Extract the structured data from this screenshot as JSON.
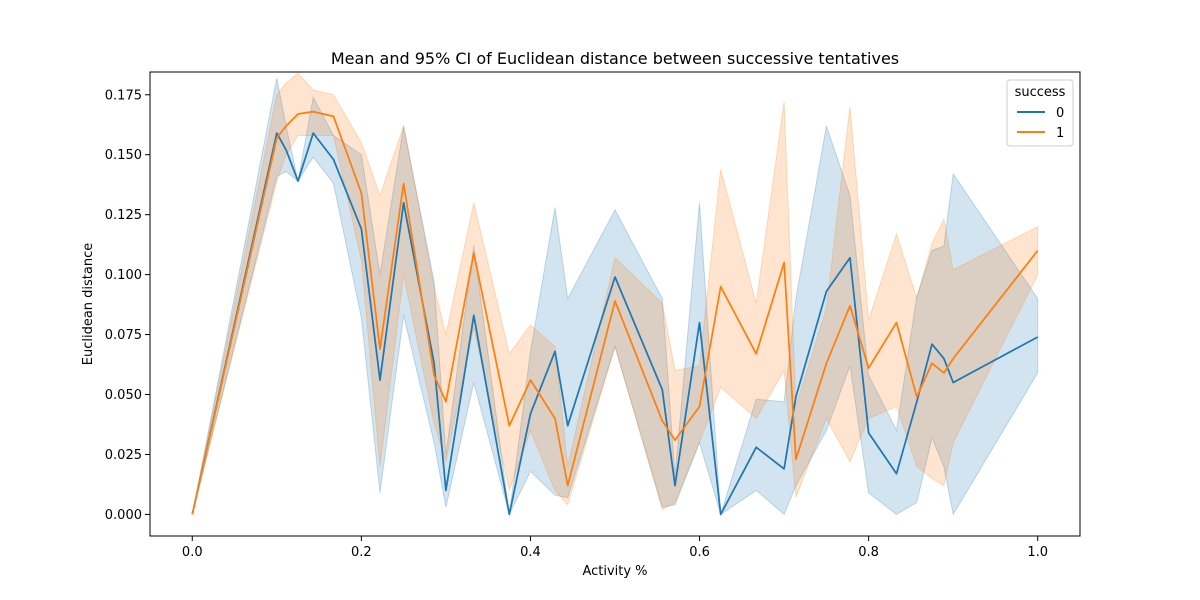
{
  "chart_data": {
    "type": "line",
    "title": "Mean and 95% CI of Euclidean distance between successive tentatives",
    "xlabel": "Activity %",
    "ylabel": "Euclidean distance",
    "xlim": [
      -0.05,
      1.05
    ],
    "ylim": [
      -0.009,
      0.1845
    ],
    "xticks": [
      0.0,
      0.2,
      0.4,
      0.6,
      0.8,
      1.0
    ],
    "xtick_labels": [
      "0.0",
      "0.2",
      "0.4",
      "0.6",
      "0.8",
      "1.0"
    ],
    "yticks": [
      0.0,
      0.025,
      0.05,
      0.075,
      0.1,
      0.125,
      0.15,
      0.175
    ],
    "ytick_labels": [
      "0.000",
      "0.025",
      "0.050",
      "0.075",
      "0.100",
      "0.125",
      "0.150",
      "0.175"
    ],
    "grid": false,
    "legend": {
      "title": "success",
      "placement": "top-right"
    },
    "series": [
      {
        "name": "0",
        "color": "#1f77b4",
        "x": [
          0.0,
          0.1,
          0.111,
          0.125,
          0.143,
          0.167,
          0.2,
          0.222,
          0.25,
          0.286,
          0.3,
          0.333,
          0.375,
          0.4,
          0.429,
          0.444,
          0.5,
          0.556,
          0.571,
          0.6,
          0.625,
          0.667,
          0.7,
          0.714,
          0.75,
          0.778,
          0.8,
          0.833,
          0.857,
          0.875,
          0.889,
          0.9,
          1.0
        ],
        "y": [
          0.0,
          0.159,
          0.152,
          0.139,
          0.159,
          0.148,
          0.119,
          0.056,
          0.13,
          0.063,
          0.01,
          0.083,
          0.0,
          0.042,
          0.068,
          0.037,
          0.099,
          0.052,
          0.012,
          0.08,
          0.0,
          0.028,
          0.019,
          0.049,
          0.093,
          0.107,
          0.034,
          0.017,
          0.047,
          0.071,
          0.065,
          0.055,
          0.074
        ],
        "ci_low": [
          0.0,
          0.141,
          0.143,
          0.139,
          0.149,
          0.138,
          0.082,
          0.009,
          0.083,
          0.03,
          0.003,
          0.055,
          0.0,
          0.018,
          0.008,
          0.007,
          0.07,
          0.003,
          0.004,
          0.03,
          0.0,
          0.01,
          0.0,
          0.012,
          0.035,
          0.062,
          0.009,
          0.0,
          0.005,
          0.032,
          0.02,
          0.0,
          0.059
        ],
        "ci_high": [
          0.0,
          0.182,
          0.162,
          0.139,
          0.174,
          0.158,
          0.15,
          0.1,
          0.162,
          0.097,
          0.025,
          0.112,
          0.0,
          0.068,
          0.128,
          0.09,
          0.127,
          0.09,
          0.016,
          0.13,
          0.0,
          0.048,
          0.047,
          0.09,
          0.162,
          0.133,
          0.058,
          0.035,
          0.091,
          0.11,
          0.112,
          0.142,
          0.09
        ]
      },
      {
        "name": "1",
        "color": "#ff7f0e",
        "x": [
          0.0,
          0.1,
          0.111,
          0.125,
          0.143,
          0.167,
          0.2,
          0.222,
          0.25,
          0.286,
          0.3,
          0.333,
          0.375,
          0.4,
          0.429,
          0.444,
          0.5,
          0.556,
          0.571,
          0.6,
          0.625,
          0.667,
          0.7,
          0.714,
          0.75,
          0.778,
          0.8,
          0.833,
          0.857,
          0.875,
          0.889,
          0.9,
          1.0
        ],
        "y": [
          0.0,
          0.157,
          0.162,
          0.167,
          0.168,
          0.166,
          0.134,
          0.069,
          0.138,
          0.058,
          0.047,
          0.109,
          0.037,
          0.056,
          0.04,
          0.012,
          0.089,
          0.039,
          0.031,
          0.045,
          0.095,
          0.067,
          0.105,
          0.023,
          0.063,
          0.087,
          0.061,
          0.08,
          0.049,
          0.063,
          0.059,
          0.065,
          0.11
        ],
        "ci_low": [
          0.0,
          0.139,
          0.15,
          0.158,
          0.158,
          0.158,
          0.106,
          0.02,
          0.1,
          0.038,
          0.022,
          0.078,
          0.01,
          0.035,
          0.01,
          0.004,
          0.07,
          0.002,
          0.005,
          0.03,
          0.053,
          0.04,
          0.06,
          0.007,
          0.04,
          0.022,
          0.04,
          0.045,
          0.02,
          0.015,
          0.012,
          0.03,
          0.1
        ],
        "ci_high": [
          0.0,
          0.175,
          0.18,
          0.184,
          0.177,
          0.175,
          0.155,
          0.133,
          0.162,
          0.095,
          0.075,
          0.13,
          0.067,
          0.079,
          0.07,
          0.02,
          0.107,
          0.088,
          0.06,
          0.062,
          0.144,
          0.088,
          0.172,
          0.045,
          0.086,
          0.17,
          0.081,
          0.117,
          0.09,
          0.113,
          0.123,
          0.102,
          0.12
        ]
      }
    ]
  }
}
